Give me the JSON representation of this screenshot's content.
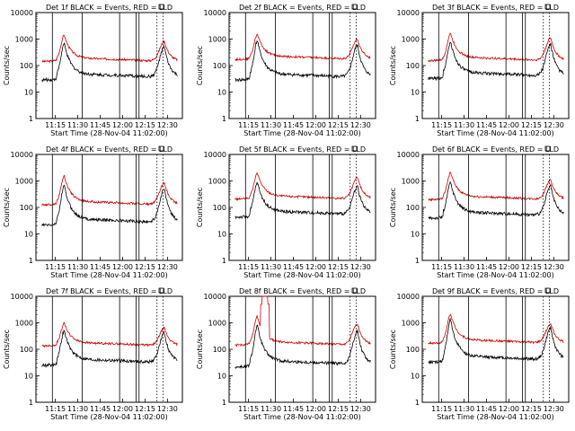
{
  "chart_data": [
    {
      "type": "line",
      "title": "Det 1f BLACK = Events, RED = LLD",
      "xlabel": "Start Time (28-Nov-04 11:02:00)",
      "ylabel": "Counts/sec",
      "yscale": "log",
      "ylim": [
        1,
        10000
      ],
      "yticks": [
        "1",
        "10",
        "100",
        "1000",
        "10000"
      ],
      "xticks": [
        "11:15",
        "11:30",
        "11:45",
        "12:00",
        "12:15",
        "12:30"
      ],
      "vlines_solid": [
        "11:13",
        "11:33",
        "11:58",
        "12:09",
        "12:11"
      ],
      "vlines_dotted": [
        "12:23",
        "12:27"
      ],
      "series": [
        {
          "color": "#d00000",
          "peak1": 1300,
          "base": 160,
          "peak2": 900
        },
        {
          "color": "#000000",
          "peak1": 600,
          "base": 40,
          "peak2": 550
        }
      ]
    },
    {
      "type": "line",
      "title": "Det 2f BLACK = Events, RED = LLD",
      "xlabel": "Start Time (28-Nov-04 11:02:00)",
      "ylabel": "Counts/sec",
      "yscale": "log",
      "ylim": [
        1,
        10000
      ],
      "yticks": [
        "1",
        "10",
        "100",
        "1000",
        "10000"
      ],
      "xticks": [
        "11:15",
        "11:30",
        "11:45",
        "12:00",
        "12:15",
        "12:30"
      ],
      "vlines_solid": [
        "11:13",
        "11:33",
        "11:58",
        "12:09",
        "12:11"
      ],
      "vlines_dotted": [
        "12:23",
        "12:27"
      ],
      "series": [
        {
          "color": "#d00000",
          "peak1": 1400,
          "base": 190,
          "peak2": 1100
        },
        {
          "color": "#000000",
          "peak1": 800,
          "base": 40,
          "peak2": 650
        }
      ]
    },
    {
      "type": "line",
      "title": "Det 3f BLACK = Events, RED = LLD",
      "xlabel": "Start Time (28-Nov-04 11:02:00)",
      "ylabel": "Counts/sec",
      "yscale": "log",
      "ylim": [
        1,
        10000
      ],
      "yticks": [
        "1",
        "10",
        "100",
        "1000",
        "10000"
      ],
      "xticks": [
        "11:15",
        "11:30",
        "11:45",
        "12:00",
        "12:15",
        "12:30"
      ],
      "vlines_solid": [
        "11:13",
        "11:33",
        "11:58",
        "12:09",
        "12:11"
      ],
      "vlines_dotted": [
        "12:23",
        "12:27"
      ],
      "series": [
        {
          "color": "#d00000",
          "peak1": 1500,
          "base": 170,
          "peak2": 1200
        },
        {
          "color": "#000000",
          "peak1": 700,
          "base": 45,
          "peak2": 700
        }
      ]
    },
    {
      "type": "line",
      "title": "Det 4f BLACK = Events, RED = LLD",
      "xlabel": "Start Time (28-Nov-04 11:02:00)",
      "ylabel": "Counts/sec",
      "yscale": "log",
      "ylim": [
        1,
        10000
      ],
      "yticks": [
        "1",
        "10",
        "100",
        "1000",
        "10000"
      ],
      "xticks": [
        "11:15",
        "11:30",
        "11:45",
        "12:00",
        "12:15",
        "12:30"
      ],
      "vlines_solid": [
        "11:13",
        "11:33",
        "11:58",
        "12:09",
        "12:11"
      ],
      "vlines_dotted": [
        "12:23",
        "12:27"
      ],
      "series": [
        {
          "color": "#d00000",
          "peak1": 1400,
          "base": 140,
          "peak2": 900
        },
        {
          "color": "#000000",
          "peak1": 600,
          "base": 30,
          "peak2": 550
        }
      ]
    },
    {
      "type": "line",
      "title": "Det 5f BLACK = Events, RED = LLD",
      "xlabel": "Start Time (28-Nov-04 11:02:00)",
      "ylabel": "Counts/sec",
      "yscale": "log",
      "ylim": [
        1,
        10000
      ],
      "yticks": [
        "1",
        "10",
        "100",
        "1000",
        "10000"
      ],
      "xticks": [
        "11:15",
        "11:30",
        "11:45",
        "12:00",
        "12:15",
        "12:30"
      ],
      "vlines_solid": [
        "11:13",
        "11:33",
        "11:58",
        "12:09",
        "12:11"
      ],
      "vlines_dotted": [
        "12:23",
        "12:27"
      ],
      "series": [
        {
          "color": "#d00000",
          "peak1": 1800,
          "base": 230,
          "peak2": 1500
        },
        {
          "color": "#000000",
          "peak1": 800,
          "base": 60,
          "peak2": 700
        }
      ]
    },
    {
      "type": "line",
      "title": "Det 6f BLACK = Events, RED = LLD",
      "xlabel": "Start Time (28-Nov-04 11:02:00)",
      "ylabel": "Counts/sec",
      "yscale": "log",
      "ylim": [
        1,
        10000
      ],
      "yticks": [
        "1",
        "10",
        "100",
        "1000",
        "10000"
      ],
      "xticks": [
        "11:15",
        "11:30",
        "11:45",
        "12:00",
        "12:15",
        "12:30"
      ],
      "vlines_solid": [
        "11:13",
        "11:33",
        "11:58",
        "12:09",
        "12:11"
      ],
      "vlines_dotted": [
        "12:23",
        "12:27"
      ],
      "series": [
        {
          "color": "#d00000",
          "peak1": 1900,
          "base": 220,
          "peak2": 1200
        },
        {
          "color": "#000000",
          "peak1": 800,
          "base": 55,
          "peak2": 700
        }
      ]
    },
    {
      "type": "line",
      "title": "Det 7f BLACK = Events, RED = LLD",
      "xlabel": "Start Time (28-Nov-04 11:02:00)",
      "ylabel": "Counts/sec",
      "yscale": "log",
      "ylim": [
        1,
        10000
      ],
      "yticks": [
        "1",
        "10",
        "100",
        "1000",
        "10000"
      ],
      "xticks": [
        "11:15",
        "11:30",
        "11:45",
        "12:00",
        "12:15",
        "12:30"
      ],
      "vlines_solid": [
        "11:13",
        "11:33",
        "11:58",
        "12:09",
        "12:11"
      ],
      "vlines_dotted": [
        "12:23",
        "12:27"
      ],
      "series": [
        {
          "color": "#d00000",
          "peak1": 900,
          "base": 150,
          "peak2": 700
        },
        {
          "color": "#000000",
          "peak1": 450,
          "base": 35,
          "peak2": 450
        }
      ]
    },
    {
      "type": "line",
      "title": "Det 8f BLACK = Events, RED = LLD",
      "xlabel": "Start Time (28-Nov-04 11:02:00)",
      "ylabel": "Counts/sec",
      "yscale": "log",
      "ylim": [
        1,
        10000
      ],
      "yticks": [
        "1",
        "10",
        "100",
        "1000",
        "10000"
      ],
      "xticks": [
        "11:15",
        "11:30",
        "11:45",
        "12:00",
        "12:15",
        "12:30"
      ],
      "vlines_solid": [
        "11:13",
        "11:33",
        "11:58",
        "12:09",
        "12:11"
      ],
      "vlines_dotted": [
        "12:23",
        "12:27"
      ],
      "series": [
        {
          "color": "#d00000",
          "peak1": 1600,
          "base": 160,
          "peak2": 1000,
          "spike": 10000
        },
        {
          "color": "#000000",
          "peak1": 700,
          "base": 30,
          "peak2": 550
        }
      ]
    },
    {
      "type": "line",
      "title": "Det 9f BLACK = Events, RED = LLD",
      "xlabel": "Start Time (28-Nov-04 11:02:00)",
      "ylabel": "Counts/sec",
      "yscale": "log",
      "ylim": [
        1,
        10000
      ],
      "yticks": [
        "1",
        "10",
        "100",
        "1000",
        "10000"
      ],
      "xticks": [
        "11:15",
        "11:30",
        "11:45",
        "12:00",
        "12:15",
        "12:30"
      ],
      "vlines_solid": [
        "11:13",
        "11:33",
        "11:58",
        "12:09",
        "12:11"
      ],
      "vlines_dotted": [
        "12:23",
        "12:27"
      ],
      "series": [
        {
          "color": "#d00000",
          "peak1": 2000,
          "base": 190,
          "peak2": 1000
        },
        {
          "color": "#000000",
          "peak1": 1200,
          "base": 45,
          "peak2": 700
        }
      ]
    }
  ],
  "legend_icon": "small-square-icon"
}
